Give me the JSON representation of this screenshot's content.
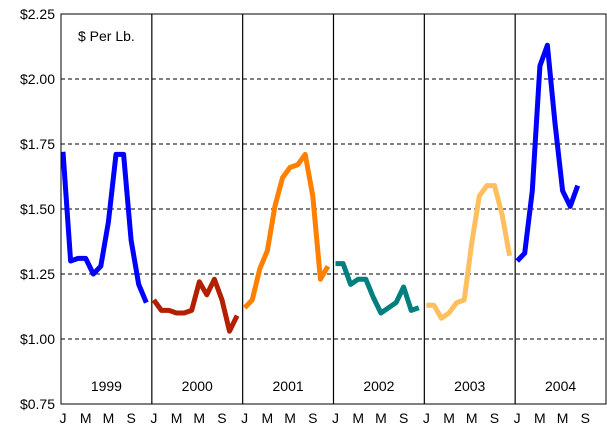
{
  "chart_data": {
    "type": "line",
    "unit_label": "$ Per Lb.",
    "ylim": [
      0.75,
      2.25
    ],
    "y_ticks": [
      0.75,
      1.0,
      1.25,
      1.5,
      1.75,
      2.0,
      2.25
    ],
    "y_tick_labels": [
      "$0.75",
      "$1.00",
      "$1.25",
      "$1.50",
      "$1.75",
      "$2.00",
      "$2.25"
    ],
    "month_tick_labels": [
      "J",
      "M",
      "M",
      "S"
    ],
    "grid": "horizontal dashed",
    "series": [
      {
        "year": "1999",
        "color": "#0000ff",
        "values": [
          1.72,
          1.3,
          1.31,
          1.31,
          1.25,
          1.28,
          1.45,
          1.71,
          1.71,
          1.38,
          1.21,
          1.14
        ]
      },
      {
        "year": "2000",
        "color": "#b22000",
        "values": [
          1.15,
          1.11,
          1.11,
          1.1,
          1.1,
          1.11,
          1.22,
          1.17,
          1.23,
          1.15,
          1.03,
          1.09
        ]
      },
      {
        "year": "2001",
        "color": "#ff7f00",
        "values": [
          1.12,
          1.15,
          1.27,
          1.34,
          1.51,
          1.62,
          1.66,
          1.67,
          1.71,
          1.55,
          1.23,
          1.28
        ]
      },
      {
        "year": "2002",
        "color": "#007f7f",
        "values": [
          1.29,
          1.29,
          1.21,
          1.23,
          1.23,
          1.16,
          1.1,
          1.12,
          1.14,
          1.2,
          1.11,
          1.12
        ]
      },
      {
        "year": "2003",
        "color": "#ffbf5f",
        "values": [
          1.13,
          1.13,
          1.08,
          1.1,
          1.14,
          1.15,
          1.37,
          1.55,
          1.59,
          1.59,
          1.48,
          1.32
        ]
      },
      {
        "year": "2004",
        "color": "#0000ff",
        "values": [
          1.3,
          1.33,
          1.57,
          2.05,
          2.13,
          1.83,
          1.57,
          1.51,
          1.59
        ]
      }
    ]
  }
}
